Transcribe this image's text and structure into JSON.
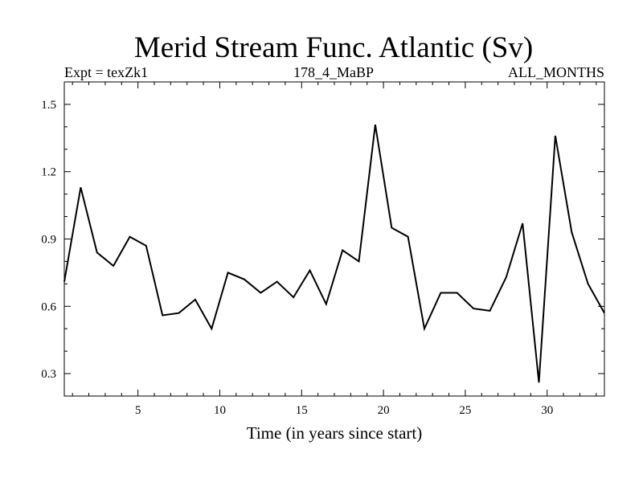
{
  "chart_data": {
    "type": "line",
    "title": "Merid Stream Func. Atlantic (Sv)",
    "subtitle_left": "Expt = texZk1",
    "subtitle_center": "178_4_MaBP",
    "subtitle_right": "ALL_MONTHS",
    "xlabel": "Time (in years since start)",
    "ylabel": "",
    "xlim": [
      0.5,
      33.5
    ],
    "ylim": [
      0.2,
      1.6
    ],
    "xticks": [
      5,
      10,
      15,
      20,
      25,
      30
    ],
    "yticks": [
      0.3,
      0.6,
      0.9,
      1.2,
      1.5
    ],
    "ytick_labels": [
      "0.3",
      "0.6",
      "0.9",
      "1.2",
      "1.5"
    ],
    "grid": false,
    "series": [
      {
        "x": [
          0.5,
          1.5,
          2.5,
          3.5,
          4.5,
          5.5,
          6.5,
          7.5,
          8.5,
          9.5,
          10.5,
          11.5,
          12.5,
          13.5,
          14.5,
          15.5,
          16.5,
          17.5,
          18.5,
          19.5,
          20.5,
          21.5,
          22.5,
          23.5,
          24.5,
          25.5,
          26.5,
          27.5,
          28.5,
          29.5,
          30.5,
          31.5,
          32.5,
          33.5
        ],
        "values": [
          0.71,
          1.13,
          0.84,
          0.78,
          0.91,
          0.87,
          0.56,
          0.57,
          0.63,
          0.5,
          0.75,
          0.72,
          0.66,
          0.71,
          0.64,
          0.76,
          0.61,
          0.85,
          0.8,
          1.41,
          0.95,
          0.91,
          0.5,
          0.66,
          0.66,
          0.59,
          0.58,
          0.73,
          0.97,
          0.26,
          1.36,
          0.93,
          0.7,
          0.57
        ]
      }
    ]
  }
}
